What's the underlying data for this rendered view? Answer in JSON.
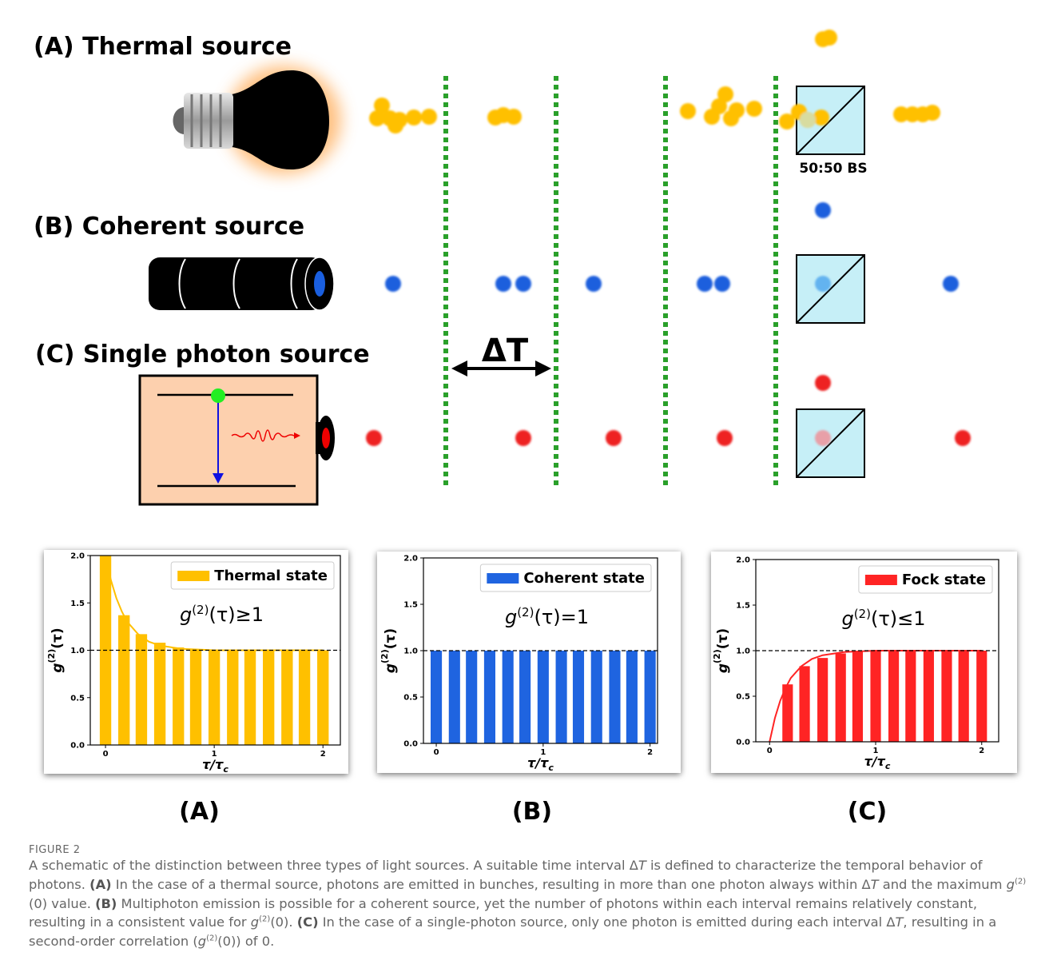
{
  "schematic": {
    "thermal_title": "(A) Thermal source",
    "coherent_title": "(B) Coherent source",
    "single_title": "(C) Single photon source",
    "interval_label": "ΔT",
    "beamsplitter_label": "50:50 BS"
  },
  "chart_data": [
    {
      "type": "bar",
      "panel_label": "(A)",
      "x": [
        0,
        0.17,
        0.33,
        0.5,
        0.67,
        0.83,
        1,
        1.17,
        1.33,
        1.5,
        1.67,
        1.83,
        2
      ],
      "series": [
        {
          "name": "Thermal state",
          "color": "#ffc000",
          "values": [
            2.0,
            1.37,
            1.17,
            1.08,
            1.03,
            1.01,
            1.0,
            1.0,
            1.0,
            1.0,
            1.0,
            1.0,
            1.0
          ]
        }
      ],
      "curve": {
        "x": [
          0,
          0.05,
          0.1,
          0.15,
          0.2,
          0.3,
          0.4,
          0.5,
          0.7,
          1,
          1.5,
          2
        ],
        "values": [
          2.0,
          1.74,
          1.55,
          1.41,
          1.3,
          1.17,
          1.09,
          1.05,
          1.015,
          1.0,
          1.0,
          1.0
        ]
      },
      "reference_line": 1.0,
      "annotation": [
        "g",
        "(2)",
        "(τ)≥1"
      ],
      "ylabel": [
        "g",
        "(2)",
        "(τ)"
      ],
      "xlabel": [
        "τ/τ",
        "c"
      ],
      "xlim": [
        -0.14,
        2.16
      ],
      "ylim": [
        0,
        2
      ],
      "xticks": [
        0,
        1,
        2
      ],
      "yticks": [
        {
          "value": 0,
          "label": "0.0"
        },
        {
          "value": 0.5,
          "label": "0.5"
        },
        {
          "value": 1,
          "label": "1.0"
        },
        {
          "value": 1.5,
          "label": "1.5"
        },
        {
          "value": 2,
          "label": "2.0"
        }
      ],
      "legend": "upper right"
    },
    {
      "type": "bar",
      "panel_label": "(B)",
      "x": [
        0,
        0.17,
        0.33,
        0.5,
        0.67,
        0.83,
        1,
        1.17,
        1.33,
        1.5,
        1.67,
        1.83,
        2
      ],
      "series": [
        {
          "name": "Coherent state",
          "color": "#1f64e0",
          "values": [
            1.0,
            1.0,
            1.0,
            1.0,
            1.0,
            1.0,
            1.0,
            1.0,
            1.0,
            1.0,
            1.0,
            1.0,
            1.0
          ]
        }
      ],
      "reference_line": 1.0,
      "annotation": [
        "g",
        "(2)",
        "(τ)=1"
      ],
      "ylabel": [
        "g",
        "(2)",
        "(τ)"
      ],
      "xlabel": [
        "τ/τ",
        "c"
      ],
      "xlim": [
        -0.12,
        2.07
      ],
      "ylim": [
        0,
        2
      ],
      "xticks": [
        0,
        1,
        2
      ],
      "yticks": [
        {
          "value": 0,
          "label": "0.0"
        },
        {
          "value": 0.5,
          "label": "0.5"
        },
        {
          "value": 1,
          "label": "1.0"
        },
        {
          "value": 1.5,
          "label": "1.5"
        },
        {
          "value": 2,
          "label": "2.0"
        }
      ],
      "legend": "upper right"
    },
    {
      "type": "bar",
      "panel_label": "(C)",
      "x": [
        0.17,
        0.33,
        0.5,
        0.67,
        0.83,
        1,
        1.17,
        1.33,
        1.5,
        1.67,
        1.83,
        2
      ],
      "series": [
        {
          "name": "Fock state",
          "color": "#ff2424",
          "values": [
            0.63,
            0.83,
            0.92,
            0.97,
            0.99,
            1.0,
            1.0,
            1.0,
            1.0,
            1.0,
            1.0,
            1.0
          ]
        }
      ],
      "curve": {
        "x": [
          0,
          0.05,
          0.1,
          0.15,
          0.2,
          0.3,
          0.4,
          0.5,
          0.7,
          1,
          1.5,
          2
        ],
        "values": [
          0,
          0.26,
          0.45,
          0.59,
          0.7,
          0.83,
          0.91,
          0.95,
          0.985,
          1.0,
          1.0,
          1.0
        ]
      },
      "reference_line": 1.0,
      "annotation": [
        "g",
        "(2)",
        "(τ)≤1"
      ],
      "ylabel": [
        "g",
        "(2)",
        "(τ)"
      ],
      "xlabel": [
        "τ/τ",
        "c"
      ],
      "xlim": [
        -0.13,
        2.16
      ],
      "ylim": [
        0,
        2
      ],
      "xticks": [
        0,
        1,
        2
      ],
      "yticks": [
        {
          "value": 0,
          "label": "0.0"
        },
        {
          "value": 0.5,
          "label": "0.5"
        },
        {
          "value": 1,
          "label": "1.0"
        },
        {
          "value": 1.5,
          "label": "1.5"
        },
        {
          "value": 2,
          "label": "2.0"
        }
      ],
      "legend": "upper right"
    }
  ],
  "figure_label": "FIGURE 2",
  "caption": [
    "A schematic of the distinction between three types of light sources. A suitable time interval Δ",
    "T",
    " is defined to characterize the temporal behavior of photons. ",
    "(A)",
    " In the case of a thermal source, photons are emitted in bunches, resulting in more than one photon always within Δ",
    "T",
    " and the maximum ",
    "g",
    "(2)",
    "(0) value. ",
    "(B)",
    " Multiphoton emission is possible for a coherent source, yet the number of photons within each interval remains relatively constant, resulting in a consistent value for ",
    "g",
    "(2)",
    "(0). ",
    "(C)",
    " In the case of a single-photon source, only one photon is emitted during each interval Δ",
    "T",
    ", resulting in a second-order correlation (",
    "g",
    "(2)",
    "(0)) of 0."
  ]
}
